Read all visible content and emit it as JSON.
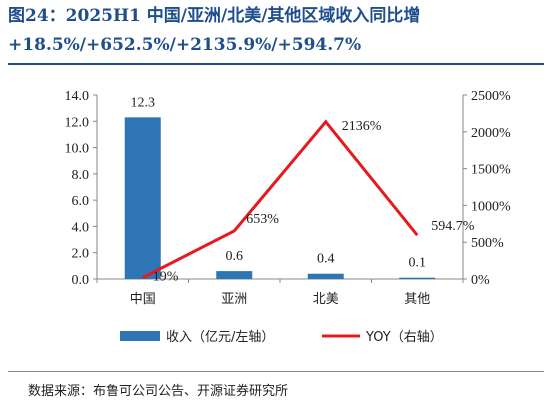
{
  "figure": {
    "title_line1": "图24：2025H1  中国/亚洲/北美/其他区域收入同比增",
    "title_line2": "+18.5%/+652.5%/+2135.9%/+594.7%",
    "source": "数据来源：布鲁可公司公告、开源证券研究所"
  },
  "chart_data": {
    "type": "bar",
    "categories": [
      "中国",
      "亚洲",
      "北美",
      "其他"
    ],
    "series": [
      {
        "name": "收入（亿元/左轴）",
        "kind": "bar",
        "axis": "left",
        "values": [
          12.3,
          0.6,
          0.4,
          0.1
        ],
        "labels": [
          "12.3",
          "0.6",
          "0.4",
          "0.1"
        ],
        "color": "#2e75b6"
      },
      {
        "name": "YOY（右轴）",
        "kind": "line",
        "axis": "right",
        "values": [
          19,
          653,
          2136,
          595
        ],
        "labels": [
          "19%",
          "653%",
          "2136%",
          "594.7%"
        ],
        "color": "#e8191e"
      }
    ],
    "ylim_left": [
      0,
      14
    ],
    "yticks_left": [
      "0.0",
      "2.0",
      "4.0",
      "6.0",
      "8.0",
      "10.0",
      "12.0",
      "14.0"
    ],
    "ylim_right": [
      0,
      2500
    ],
    "yticks_right": [
      "0%",
      "500%",
      "1000%",
      "1500%",
      "2000%",
      "2500%"
    ],
    "grid": false,
    "legend_position": "bottom"
  }
}
